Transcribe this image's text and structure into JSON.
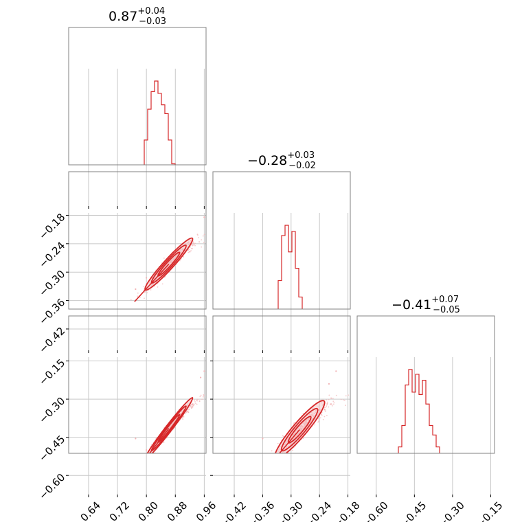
{
  "colors": {
    "series": "#d62728",
    "scatter": "#f2b3b5",
    "contour_fill": "#f4c2c3",
    "grid": "#c8c8c8",
    "axis": "#808080"
  },
  "titles": [
    {
      "main": "0.87",
      "plus": "+0.04",
      "minus": "−0.03"
    },
    {
      "main": "−0.28",
      "plus": "+0.03",
      "minus": "−0.02"
    },
    {
      "main": "−0.41",
      "plus": "+0.07",
      "minus": "−0.05"
    }
  ],
  "chart_data": {
    "type": "corner",
    "parameters": 3,
    "summaries": [
      {
        "median": 0.87,
        "upper": 0.04,
        "lower": 0.03
      },
      {
        "median": -0.28,
        "upper": 0.03,
        "lower": 0.02
      },
      {
        "median": -0.41,
        "upper": 0.07,
        "lower": 0.05
      }
    ],
    "ranges": [
      [
        0.585,
        0.965
      ],
      [
        -0.465,
        -0.175
      ],
      [
        -0.675,
        -0.135
      ]
    ],
    "ticks": [
      [
        "0.64",
        "0.72",
        "0.80",
        "0.88",
        "0.96"
      ],
      [
        "−0.42",
        "−0.36",
        "−0.30",
        "−0.24",
        "−0.18"
      ],
      [
        "−0.60",
        "−0.45",
        "−0.30",
        "−0.15"
      ]
    ],
    "tick_values": [
      [
        0.64,
        0.72,
        0.8,
        0.88,
        0.96
      ],
      [
        -0.42,
        -0.36,
        -0.3,
        -0.24,
        -0.18
      ],
      [
        -0.6,
        -0.45,
        -0.3,
        -0.15
      ]
    ],
    "histograms": [
      {
        "param": 0,
        "bin_start": 0.585,
        "bin_width": 0.0095,
        "counts": [
          1,
          0,
          0,
          1,
          0,
          0,
          0,
          0,
          0,
          0,
          0,
          0,
          0,
          0,
          0,
          1,
          1,
          2,
          5,
          12,
          22,
          42,
          75,
          110,
          130,
          142,
          128,
          115,
          105,
          75,
          48,
          30,
          18,
          12,
          6,
          3
        ]
      },
      {
        "param": 1,
        "bin_start": -0.465,
        "bin_width": 0.00725,
        "counts": [
          1,
          1,
          1,
          1,
          0,
          1,
          0,
          0,
          0,
          1,
          1,
          1,
          1,
          1,
          2,
          4,
          10,
          20,
          40,
          68,
          112,
          122,
          96,
          116,
          80,
          52,
          36,
          24,
          10,
          8,
          8,
          5,
          2,
          1
        ]
      },
      {
        "param": 2,
        "bin_start": -0.675,
        "bin_width": 0.0135,
        "counts": [
          0,
          0,
          1,
          1,
          0,
          1,
          1,
          2,
          4,
          9,
          14,
          26,
          40,
          58,
          92,
          105,
          86,
          101,
          84,
          96,
          76,
          58,
          50,
          40,
          26,
          18,
          12,
          10,
          6,
          5,
          4,
          2,
          2,
          1
        ]
      }
    ],
    "scatter_pairs": [
      {
        "x_param": 0,
        "y_param": 1,
        "outliers": [
          [
            0.61,
            -0.448
          ],
          [
            0.77,
            -0.336
          ],
          [
            0.8,
            -0.312
          ],
          [
            0.92,
            -0.257
          ],
          [
            0.96,
            -0.184
          ]
        ]
      },
      {
        "x_param": 0,
        "y_param": 2,
        "outliers": [
          [
            0.61,
            -0.642
          ],
          [
            0.77,
            -0.455
          ],
          [
            0.8,
            -0.5
          ],
          [
            0.95,
            -0.215
          ],
          [
            0.96,
            -0.19
          ]
        ]
      },
      {
        "x_param": 1,
        "y_param": 2,
        "outliers": [
          [
            -0.43,
            -0.52
          ],
          [
            -0.36,
            -0.455
          ],
          [
            -0.31,
            -0.56
          ],
          [
            -0.22,
            -0.24
          ],
          [
            -0.205,
            -0.19
          ]
        ]
      }
    ]
  }
}
